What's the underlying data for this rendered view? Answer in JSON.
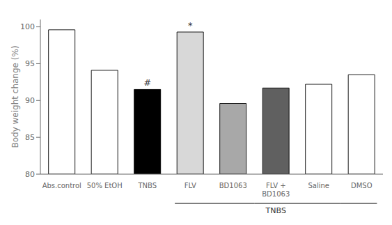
{
  "chart_data": {
    "type": "bar",
    "categories": [
      "Abs.control",
      "50% EtOH",
      "TNBS",
      "FLV",
      "BD1063",
      "FLV +\nBD1063",
      "Saline",
      "DMSO"
    ],
    "values": [
      99.6,
      94.1,
      91.5,
      99.3,
      89.6,
      91.7,
      92.2,
      93.5
    ],
    "colors": [
      "white",
      "white",
      "black",
      "#d8d8d8",
      "#a8a8a8",
      "#606060",
      "white",
      "white"
    ],
    "ylabel": "Body weight change (%)",
    "ylim": [
      80,
      101
    ],
    "yticks": [
      80,
      85,
      90,
      95,
      100
    ],
    "grid": false,
    "annotations": [
      {
        "text": "#",
        "category": "TNBS"
      },
      {
        "text": "*",
        "category": "FLV"
      },
      {
        "text": "TNBS",
        "group": [
          "FLV",
          "DMSO"
        ]
      }
    ]
  }
}
